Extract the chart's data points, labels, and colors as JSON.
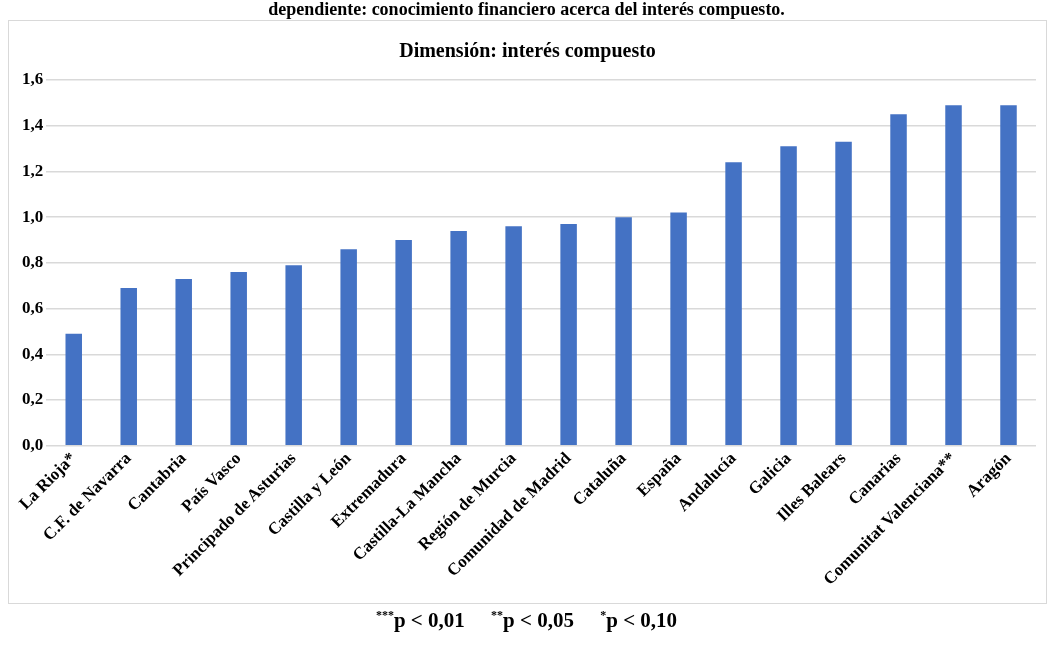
{
  "chart_data": {
    "type": "bar",
    "title": "dependiente: conocimiento financiero acerca del interés compuesto.",
    "subtitle": "Dimensión: interés compuesto",
    "categories": [
      "La Rioja*",
      "C.F. de Navarra",
      "Cantabria",
      "País Vasco",
      "Principado de Asturias",
      "Castilla y León",
      "Extremadura",
      "Castilla-La Mancha",
      "Región de Murcia",
      "Comunidad de Madrid",
      "Cataluña",
      "España",
      "Andalucía",
      "Galicia",
      "Illes Balears",
      "Canarias",
      "Comunitat Valenciana**",
      "Aragón"
    ],
    "values": [
      0.49,
      0.69,
      0.73,
      0.76,
      0.79,
      0.86,
      0.9,
      0.94,
      0.96,
      0.97,
      1.0,
      1.02,
      1.24,
      1.31,
      1.33,
      1.45,
      1.49,
      1.49
    ],
    "color": "#4472c4",
    "ylim": [
      0,
      1.6
    ],
    "yticks": [
      {
        "value": 0,
        "label": "0,0"
      },
      {
        "value": 0.2,
        "label": "0,2"
      },
      {
        "value": 0.4,
        "label": "0,4"
      },
      {
        "value": 0.6,
        "label": "0,6"
      },
      {
        "value": 0.8,
        "label": "0,8"
      },
      {
        "value": 1,
        "label": "1,0"
      },
      {
        "value": 1.2,
        "label": "1,2"
      },
      {
        "value": 1.4,
        "label": "1,4"
      },
      {
        "value": 1.6,
        "label": "1,6"
      }
    ],
    "grid": "y",
    "legend": false,
    "annotations": [
      "$^{***}$p < 0,01     $^{**}$p < 0,05     $^{*}$p < 0,10"
    ]
  }
}
